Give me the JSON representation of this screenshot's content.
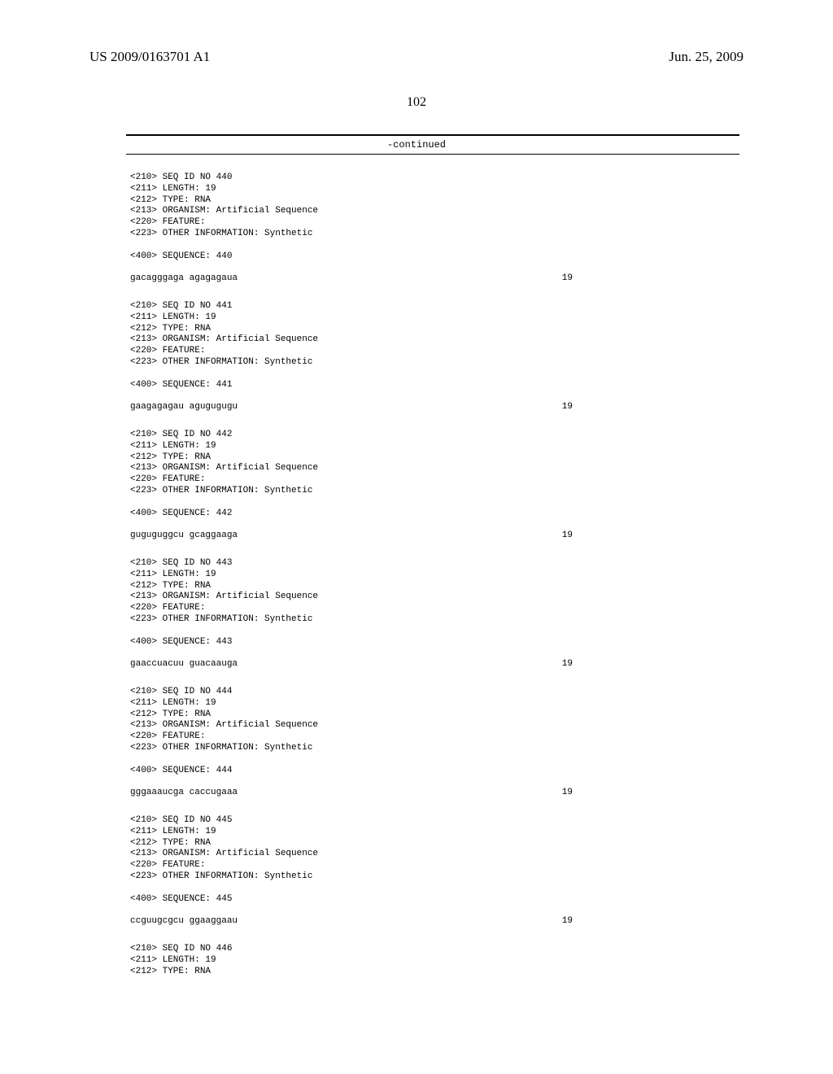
{
  "header": {
    "pub_number": "US 2009/0163701 A1",
    "pub_date": "Jun. 25, 2009"
  },
  "page_number": "102",
  "continued_label": "-continued",
  "entries": [
    {
      "meta": [
        "<210> SEQ ID NO 440",
        "<211> LENGTH: 19",
        "<212> TYPE: RNA",
        "<213> ORGANISM: Artificial Sequence",
        "<220> FEATURE:",
        "<223> OTHER INFORMATION: Synthetic"
      ],
      "seq_label": "<400> SEQUENCE: 440",
      "sequence": "gacagggaga agagagaua",
      "length": "19"
    },
    {
      "meta": [
        "<210> SEQ ID NO 441",
        "<211> LENGTH: 19",
        "<212> TYPE: RNA",
        "<213> ORGANISM: Artificial Sequence",
        "<220> FEATURE:",
        "<223> OTHER INFORMATION: Synthetic"
      ],
      "seq_label": "<400> SEQUENCE: 441",
      "sequence": "gaagagagau agugugugu",
      "length": "19"
    },
    {
      "meta": [
        "<210> SEQ ID NO 442",
        "<211> LENGTH: 19",
        "<212> TYPE: RNA",
        "<213> ORGANISM: Artificial Sequence",
        "<220> FEATURE:",
        "<223> OTHER INFORMATION: Synthetic"
      ],
      "seq_label": "<400> SEQUENCE: 442",
      "sequence": "guguguggcu gcaggaaga",
      "length": "19"
    },
    {
      "meta": [
        "<210> SEQ ID NO 443",
        "<211> LENGTH: 19",
        "<212> TYPE: RNA",
        "<213> ORGANISM: Artificial Sequence",
        "<220> FEATURE:",
        "<223> OTHER INFORMATION: Synthetic"
      ],
      "seq_label": "<400> SEQUENCE: 443",
      "sequence": "gaaccuacuu guacaauga",
      "length": "19"
    },
    {
      "meta": [
        "<210> SEQ ID NO 444",
        "<211> LENGTH: 19",
        "<212> TYPE: RNA",
        "<213> ORGANISM: Artificial Sequence",
        "<220> FEATURE:",
        "<223> OTHER INFORMATION: Synthetic"
      ],
      "seq_label": "<400> SEQUENCE: 444",
      "sequence": "gggaaaucga caccugaaa",
      "length": "19"
    },
    {
      "meta": [
        "<210> SEQ ID NO 445",
        "<211> LENGTH: 19",
        "<212> TYPE: RNA",
        "<213> ORGANISM: Artificial Sequence",
        "<220> FEATURE:",
        "<223> OTHER INFORMATION: Synthetic"
      ],
      "seq_label": "<400> SEQUENCE: 445",
      "sequence": "ccguugcgcu ggaaggaau",
      "length": "19"
    },
    {
      "meta": [
        "<210> SEQ ID NO 446",
        "<211> LENGTH: 19",
        "<212> TYPE: RNA"
      ],
      "seq_label": null,
      "sequence": null,
      "length": null
    }
  ]
}
